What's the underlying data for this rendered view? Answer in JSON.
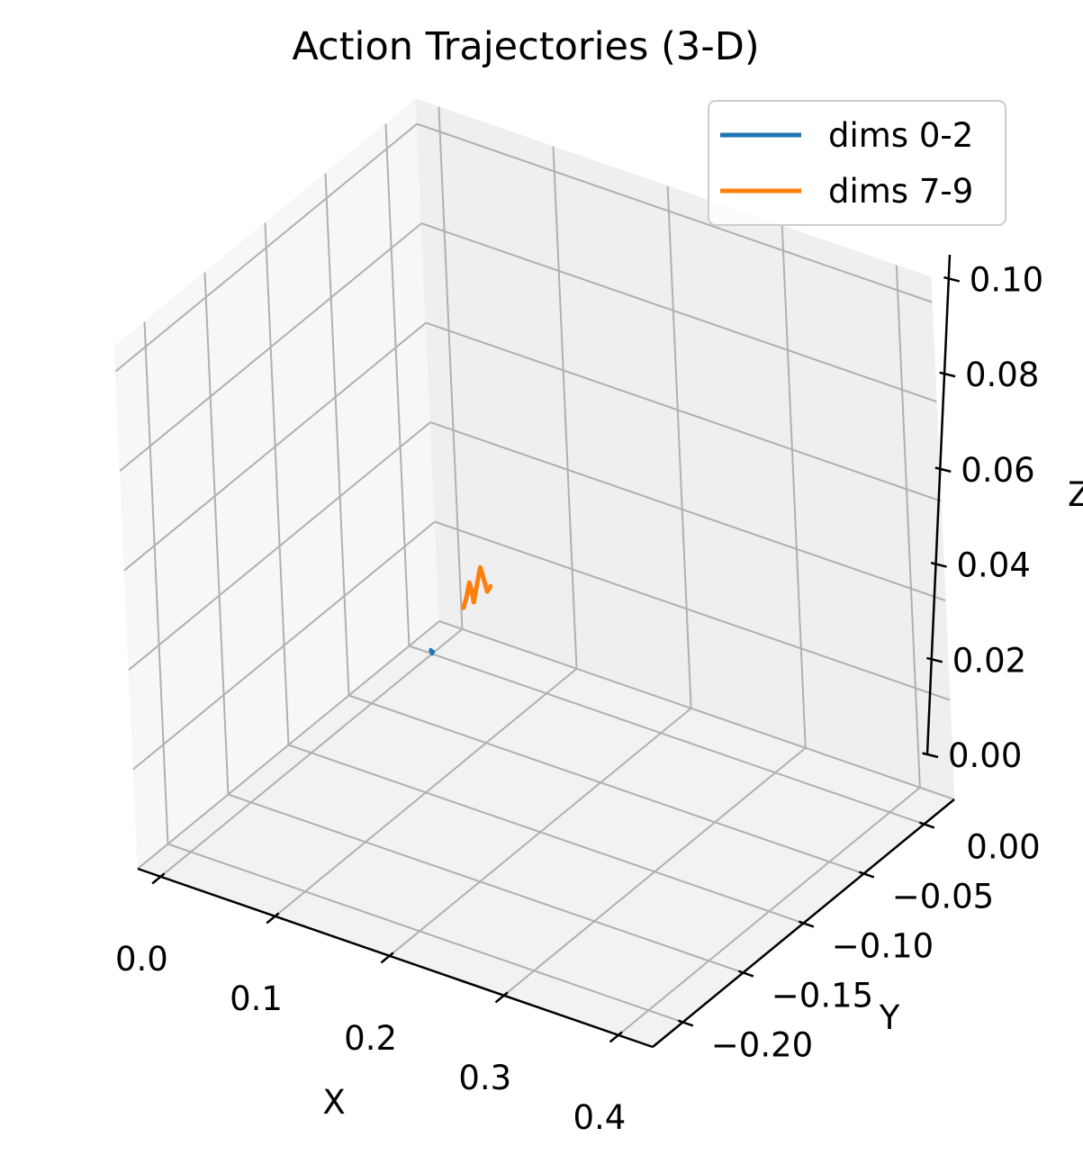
{
  "chart_data": {
    "type": "line-3d",
    "title": "Action Trajectories (3-D)",
    "xlabel": "X",
    "ylabel": "Y",
    "zlabel": "Z",
    "xlim": [
      -0.02,
      0.43
    ],
    "ylim": [
      -0.225,
      0.025
    ],
    "zlim": [
      0.0,
      0.105
    ],
    "x_ticks": [
      0.0,
      0.1,
      0.2,
      0.3,
      0.4
    ],
    "x_tick_labels": [
      "0.0",
      "0.1",
      "0.2",
      "0.3",
      "0.4"
    ],
    "y_ticks": [
      0.0,
      -0.05,
      -0.1,
      -0.15,
      -0.2
    ],
    "y_tick_labels": [
      "0.00",
      "−0.05",
      "−0.10",
      "−0.15",
      "−0.20"
    ],
    "z_ticks": [
      0.0,
      0.02,
      0.04,
      0.06,
      0.08,
      0.1
    ],
    "z_tick_labels": [
      "0.00",
      "0.02",
      "0.04",
      "0.06",
      "0.08",
      "0.10"
    ],
    "grid": true,
    "legend_position": "top-right",
    "series": [
      {
        "name": "dims 0-2",
        "color": "#1f77b4",
        "points": [
          [
            0.0,
            0.0,
            0.0
          ],
          [
            0.001,
            0.0,
            0.0005
          ],
          [
            0.0,
            -0.001,
            0.001
          ],
          [
            -0.001,
            0.0,
            0.0005
          ]
        ]
      },
      {
        "name": "dims 7-9",
        "color": "#ff7f0e",
        "points": [
          [
            0.174,
            -0.13,
            0.049
          ],
          [
            0.176,
            -0.129,
            0.051
          ],
          [
            0.178,
            -0.128,
            0.054
          ],
          [
            0.179,
            -0.127,
            0.052
          ],
          [
            0.18,
            -0.127,
            0.05
          ],
          [
            0.182,
            -0.126,
            0.053
          ],
          [
            0.184,
            -0.125,
            0.056
          ],
          [
            0.185,
            -0.125,
            0.057
          ],
          [
            0.186,
            -0.124,
            0.055
          ],
          [
            0.188,
            -0.123,
            0.052
          ],
          [
            0.19,
            -0.122,
            0.053
          ]
        ]
      }
    ]
  }
}
